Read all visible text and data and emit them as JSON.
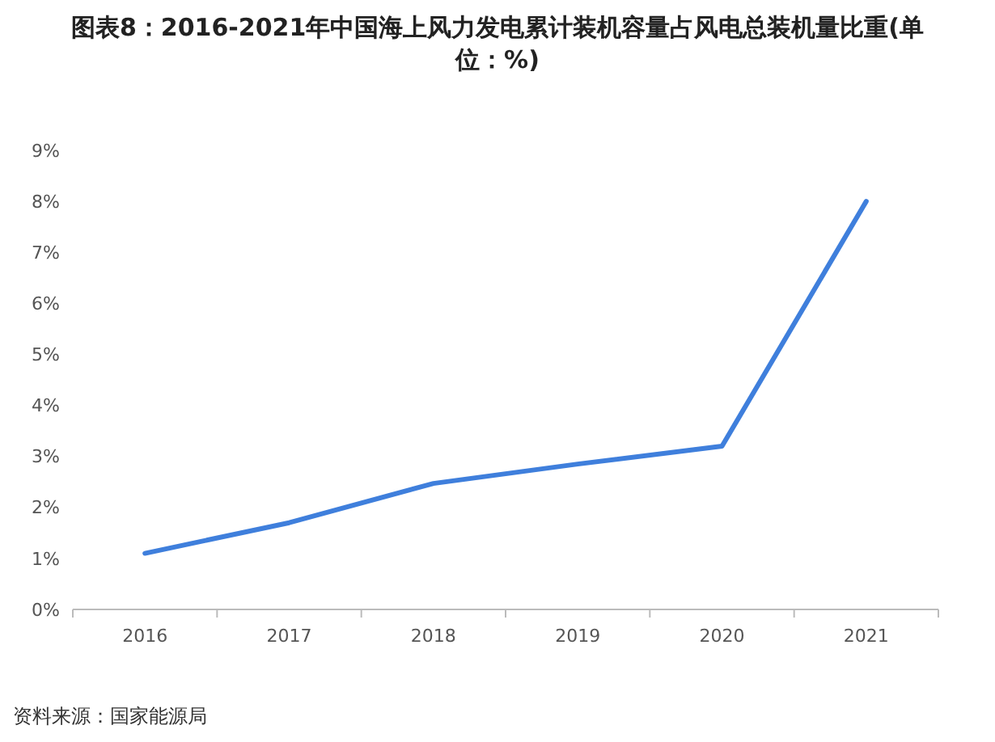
{
  "chart_data": {
    "type": "line",
    "title": "图表8：2016-2021年中国海上风力发电累计装机容量占风电总装机量比重(单位：%)",
    "categories": [
      "2016",
      "2017",
      "2018",
      "2019",
      "2020",
      "2021"
    ],
    "series": [
      {
        "color": "#3f7fdc",
        "values": [
          1.1,
          1.7,
          2.47,
          2.85,
          3.2,
          8.0
        ]
      }
    ],
    "ylim": [
      0,
      9
    ],
    "yticks": [
      {
        "value": 0,
        "label": "0%"
      },
      {
        "value": 1,
        "label": "1%"
      },
      {
        "value": 2,
        "label": "2%"
      },
      {
        "value": 3,
        "label": "3%"
      },
      {
        "value": 4,
        "label": "4%"
      },
      {
        "value": 5,
        "label": "5%"
      },
      {
        "value": 6,
        "label": "6%"
      },
      {
        "value": 7,
        "label": "7%"
      },
      {
        "value": 8,
        "label": "8%"
      },
      {
        "value": 9,
        "label": "9%"
      }
    ],
    "grid": false,
    "marker": "none",
    "line_style": "solid",
    "annotations": [
      "资料来源：国家能源局"
    ]
  }
}
